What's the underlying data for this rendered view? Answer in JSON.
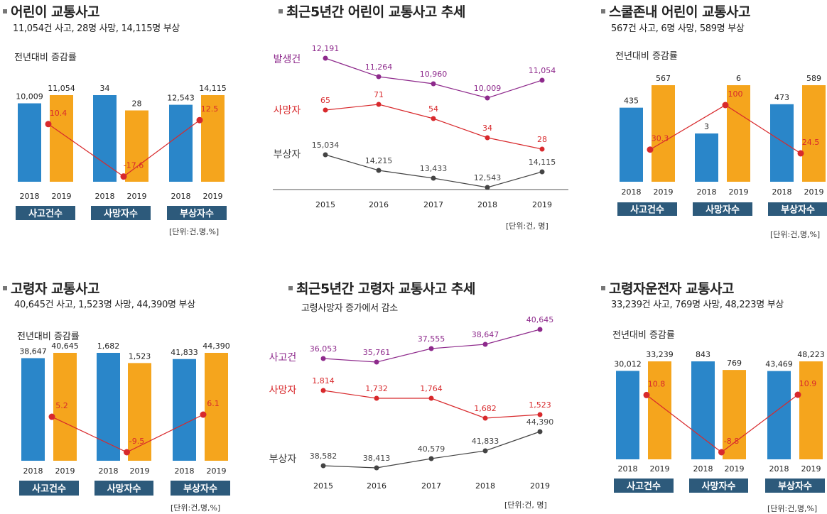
{
  "colors": {
    "bar_2018": "#2a86c9",
    "bar_2019": "#f5a51d",
    "change_line": "#d8292c",
    "category_box": "#2d5a7b",
    "accident_series": "#8e2a8c",
    "death_series": "#d8292c",
    "injury_series": "#444444"
  },
  "panels": {
    "p1": {
      "title": "어린이 교통사고",
      "subtitle": "11,054건 사고, 28명 사망, 14,115명 부상",
      "yoy_label": "전년대비 증감률",
      "unit": "[단위:건,명,%]"
    },
    "p2": {
      "title": "최근5년간 어린이 교통사고 추세",
      "unit": "[단위:건, 명]"
    },
    "p3": {
      "title": "스쿨존내 어린이 교통사고",
      "subtitle": "567건 사고, 6명 사망, 589명 부상",
      "yoy_label": "전년대비 증감률",
      "unit": "[단위:건,명,%]"
    },
    "p4": {
      "title": "고령자 교통사고",
      "subtitle": "40,645건 사고, 1,523명 사망, 44,390명 부상",
      "yoy_label": "전년대비 증감률",
      "unit": "[단위:건,명,%]"
    },
    "p5": {
      "title": "최근5년간 고령자 교통사고 추세",
      "subtitle": "고령사망자 증가에서 감소",
      "unit": "[단위:건, 명]"
    },
    "p6": {
      "title": "고령자운전자 교통사고",
      "subtitle": "33,239건 사고, 769명 사망, 48,223명 부상",
      "yoy_label": "전년대비 증감률",
      "unit": "[단위:건,명,%]"
    }
  },
  "chart_data": [
    {
      "id": "p1",
      "type": "bar",
      "groups": [
        {
          "name": "사고건수",
          "years": [
            "2018",
            "2019"
          ],
          "values": [
            10009,
            11054
          ],
          "labels": [
            "10,009",
            "11,054"
          ],
          "change_pct": 10.4,
          "change_label": "10.4"
        },
        {
          "name": "사망자수",
          "years": [
            "2018",
            "2019"
          ],
          "values": [
            34,
            28
          ],
          "labels": [
            "34",
            "28"
          ],
          "change_pct": -17.6,
          "change_label": "-17.6"
        },
        {
          "name": "부상자수",
          "years": [
            "2018",
            "2019"
          ],
          "values": [
            12543,
            14115
          ],
          "labels": [
            "12,543",
            "14,115"
          ],
          "change_pct": 12.5,
          "change_label": "12.5"
        }
      ]
    },
    {
      "id": "p2",
      "type": "line",
      "x": [
        "2015",
        "2016",
        "2017",
        "2018",
        "2019"
      ],
      "series": [
        {
          "name": "발생건",
          "values": [
            12191,
            11264,
            10960,
            10009,
            11054
          ],
          "labels": [
            "12,191",
            "11,264",
            "10,960",
            "10,009",
            "11,054"
          ]
        },
        {
          "name": "사망자",
          "values": [
            65,
            71,
            54,
            34,
            28
          ],
          "labels": [
            "65",
            "71",
            "54",
            "34",
            "28"
          ]
        },
        {
          "name": "부상자",
          "values": [
            15034,
            14215,
            13433,
            12543,
            14115
          ],
          "labels": [
            "15,034",
            "14,215",
            "13,433",
            "12,543",
            "14,115"
          ]
        }
      ]
    },
    {
      "id": "p3",
      "type": "bar",
      "groups": [
        {
          "name": "사고건수",
          "years": [
            "2018",
            "2019"
          ],
          "values": [
            435,
            567
          ],
          "labels": [
            "435",
            "567"
          ],
          "change_pct": 30.3,
          "change_label": "30.3"
        },
        {
          "name": "사망자수",
          "years": [
            "2018",
            "2019"
          ],
          "values": [
            3,
            6
          ],
          "labels": [
            "3",
            "6"
          ],
          "change_pct": 100,
          "change_label": "100"
        },
        {
          "name": "부상자수",
          "years": [
            "2018",
            "2019"
          ],
          "values": [
            473,
            589
          ],
          "labels": [
            "473",
            "589"
          ],
          "change_pct": 24.5,
          "change_label": "24.5"
        }
      ]
    },
    {
      "id": "p4",
      "type": "bar",
      "groups": [
        {
          "name": "사고건수",
          "years": [
            "2018",
            "2019"
          ],
          "values": [
            38647,
            40645
          ],
          "labels": [
            "38,647",
            "40,645"
          ],
          "change_pct": 5.2,
          "change_label": "5.2"
        },
        {
          "name": "사망자수",
          "years": [
            "2018",
            "2019"
          ],
          "values": [
            1682,
            1523
          ],
          "labels": [
            "1,682",
            "1,523"
          ],
          "change_pct": -9.5,
          "change_label": "-9.5"
        },
        {
          "name": "부상자수",
          "years": [
            "2018",
            "2019"
          ],
          "values": [
            41833,
            44390
          ],
          "labels": [
            "41,833",
            "44,390"
          ],
          "change_pct": 6.1,
          "change_label": "6.1"
        }
      ]
    },
    {
      "id": "p5",
      "type": "line",
      "x": [
        "2015",
        "2016",
        "2017",
        "2018",
        "2019"
      ],
      "series": [
        {
          "name": "사고건",
          "values": [
            36053,
            35761,
            37555,
            38647,
            40645
          ],
          "labels": [
            "36,053",
            "35,761",
            "37,555",
            "38,647",
            "40,645"
          ]
        },
        {
          "name": "사망자",
          "values": [
            1814,
            1732,
            1764,
            1682,
            1523
          ],
          "labels": [
            "1,814",
            "1,732",
            "1,764",
            "1,682",
            "1,523"
          ]
        },
        {
          "name": "부상자",
          "values": [
            38582,
            38413,
            40579,
            41833,
            44390
          ],
          "labels": [
            "38,582",
            "38,413",
            "40,579",
            "41,833",
            "44,390"
          ]
        }
      ]
    },
    {
      "id": "p6",
      "type": "bar",
      "groups": [
        {
          "name": "사고건수",
          "years": [
            "2018",
            "2019"
          ],
          "values": [
            30012,
            33239
          ],
          "labels": [
            "30,012",
            "33,239"
          ],
          "change_pct": 10.8,
          "change_label": "10.8"
        },
        {
          "name": "사망자수",
          "years": [
            "2018",
            "2019"
          ],
          "values": [
            843,
            769
          ],
          "labels": [
            "843",
            "769"
          ],
          "change_pct": -8.8,
          "change_label": "-8.8"
        },
        {
          "name": "부상자수",
          "years": [
            "2018",
            "2019"
          ],
          "values": [
            43469,
            48223
          ],
          "labels": [
            "43,469",
            "48,223"
          ],
          "change_pct": 10.9,
          "change_label": "10.9"
        }
      ]
    }
  ]
}
